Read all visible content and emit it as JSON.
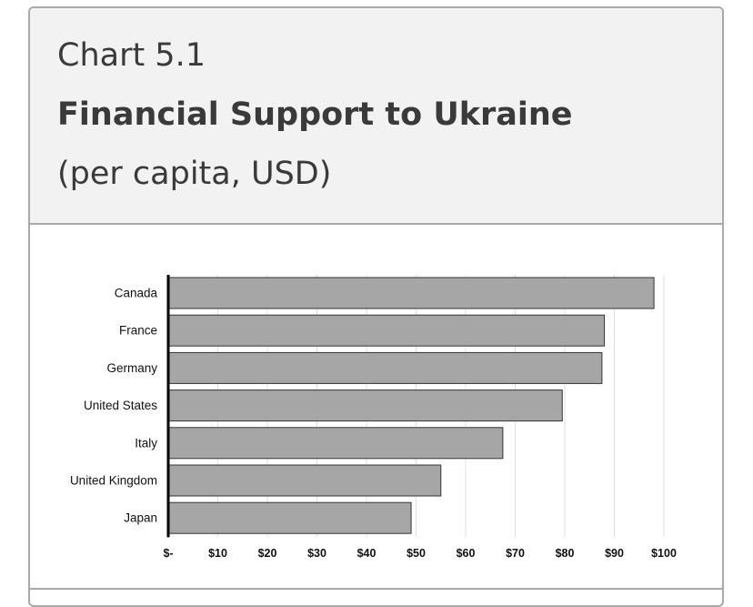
{
  "header": {
    "label": "Chart 5.1",
    "title": "Financial Support to Ukraine",
    "subtitle": "(per capita, USD)"
  },
  "colors": {
    "bar_fill": "#a6a6a6",
    "bar_stroke": "#333333",
    "gridline": "#e0e0e0",
    "axis": "#000000",
    "header_bg": "#f2f2f2",
    "card_border": "#a9a9a9"
  },
  "chart_data": {
    "type": "bar",
    "orientation": "horizontal",
    "categories": [
      "Canada",
      "France",
      "Germany",
      "United States",
      "Italy",
      "United Kingdom",
      "Japan"
    ],
    "values": [
      98,
      88,
      87.5,
      79.5,
      67.5,
      55,
      49
    ],
    "x_ticks": [
      "$-",
      "$10",
      "$20",
      "$30",
      "$40",
      "$50",
      "$60",
      "$70",
      "$80",
      "$90",
      "$100"
    ],
    "xlim": [
      0,
      100
    ],
    "grid": true,
    "legend": "none"
  }
}
